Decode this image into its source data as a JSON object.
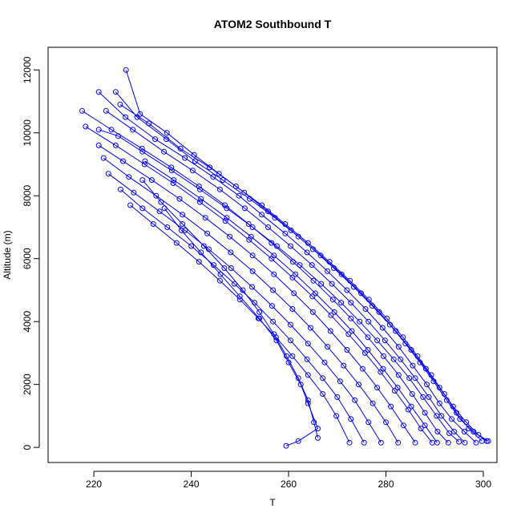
{
  "chart_data": {
    "type": "line",
    "title": "ATOM2 Southbound T",
    "xlabel": "T",
    "ylabel": "Altitude (m)",
    "xlim": [
      210.6,
      302.8
    ],
    "ylim": [
      -480,
      12720
    ],
    "xticks": [
      220,
      240,
      260,
      280,
      300
    ],
    "yticks": [
      0,
      2000,
      4000,
      6000,
      8000,
      10000,
      12000
    ],
    "grid": false,
    "color": "#0000ff",
    "marker": "open-circle",
    "series": [
      {
        "x": [
          299.7,
          297.0,
          294.5,
          292.0,
          289.3,
          286.5,
          283.5,
          280.2,
          276.5,
          272.6,
          268.4,
          264.0,
          259.3,
          254.5,
          249.2,
          243.8,
          237.8,
          231.3,
          225.4
        ],
        "y": [
          200,
          600,
          1100,
          1700,
          2300,
          2900,
          3500,
          4100,
          4700,
          5300,
          5900,
          6500,
          7100,
          7700,
          8300,
          8900,
          9500,
          10300,
          10900
        ]
      },
      {
        "x": [
          300.7,
          298.0,
          295.2,
          292.5,
          289.8,
          287.0,
          284.0,
          280.8,
          277.2,
          273.4,
          269.3,
          265.0,
          260.5,
          255.8,
          250.9,
          245.7,
          240.6,
          235.0,
          229.5,
          226.6
        ],
        "y": [
          200,
          500,
          900,
          1500,
          2100,
          2700,
          3300,
          3900,
          4500,
          5100,
          5700,
          6300,
          6900,
          7500,
          8100,
          8700,
          9300,
          10000,
          10600,
          12000
        ]
      },
      {
        "x": [
          298.5,
          296.1,
          293.5,
          291.0,
          288.4,
          285.5,
          282.6,
          279.3,
          275.8,
          272.0,
          268.0,
          263.8,
          259.3,
          254.5,
          249.8,
          244.5,
          238.7,
          232.6,
          226.5,
          221.0
        ],
        "y": [
          150,
          500,
          900,
          1400,
          2000,
          2600,
          3200,
          3800,
          4400,
          5000,
          5600,
          6200,
          6800,
          7400,
          8000,
          8600,
          9200,
          9800,
          10500,
          11300
        ]
      },
      {
        "x": [
          296.2,
          294.0,
          291.4,
          288.8,
          286.0,
          283.0,
          279.8,
          276.4,
          272.8,
          268.9,
          264.8,
          260.4,
          255.8,
          251.0,
          245.9,
          240.3,
          234.4,
          228.0,
          222.5
        ],
        "y": [
          150,
          500,
          1000,
          1600,
          2200,
          2800,
          3400,
          4000,
          4600,
          5200,
          5800,
          6400,
          7000,
          7600,
          8200,
          8800,
          9400,
          10100,
          10700
        ]
      },
      {
        "x": [
          292.8,
          290.6,
          288.0,
          285.4,
          282.6,
          279.5,
          276.3,
          272.8,
          269.1,
          265.1,
          260.9,
          256.5,
          251.8,
          246.9,
          241.6,
          235.9,
          229.9,
          223.6,
          217.6
        ],
        "y": [
          150,
          500,
          1100,
          1700,
          2300,
          2900,
          3500,
          4100,
          4700,
          5300,
          5900,
          6500,
          7100,
          7700,
          8300,
          8900,
          9500,
          10100,
          10700
        ]
      },
      {
        "x": [
          289.5,
          287.2,
          284.6,
          281.8,
          278.9,
          275.7,
          272.3,
          268.7,
          264.9,
          260.8,
          256.5,
          251.9,
          247.0,
          241.8,
          236.3,
          230.4,
          224.5,
          218.3
        ],
        "y": [
          150,
          600,
          1200,
          1800,
          2400,
          3000,
          3600,
          4200,
          4800,
          5400,
          6000,
          6600,
          7200,
          7800,
          8400,
          9000,
          9600,
          10200
        ]
      },
      {
        "x": [
          286.0,
          283.6,
          281.0,
          278.2,
          275.2,
          272.0,
          268.6,
          265.0,
          261.1,
          257.0,
          252.6,
          247.9,
          242.9,
          237.6,
          231.9,
          226.0,
          221.0
        ],
        "y": [
          150,
          700,
          1300,
          1900,
          2500,
          3100,
          3700,
          4300,
          4900,
          5500,
          6100,
          6700,
          7300,
          7900,
          8500,
          9100,
          9600
        ]
      },
      {
        "x": [
          282.5,
          280.0,
          277.3,
          274.4,
          271.3,
          268.0,
          264.5,
          260.8,
          256.8,
          252.6,
          248.1,
          243.3,
          238.2,
          232.8,
          227.2,
          222.0
        ],
        "y": [
          150,
          800,
          1400,
          2000,
          2600,
          3200,
          3800,
          4400,
          5000,
          5600,
          6200,
          6800,
          7400,
          8000,
          8600,
          9200
        ]
      },
      {
        "x": [
          279.0,
          276.4,
          273.6,
          270.6,
          267.4,
          264.0,
          260.4,
          256.6,
          252.5,
          248.2,
          243.6,
          238.7,
          233.5,
          228.2,
          223.0
        ],
        "y": [
          150,
          800,
          1500,
          2100,
          2700,
          3300,
          3900,
          4500,
          5100,
          5700,
          6300,
          6900,
          7500,
          8100,
          8700
        ]
      },
      {
        "x": [
          275.5,
          272.8,
          270.0,
          267.0,
          263.8,
          260.4,
          256.8,
          253.0,
          248.9,
          244.6,
          240.0,
          235.1,
          230.0,
          225.5
        ],
        "y": [
          150,
          900,
          1600,
          2200,
          2800,
          3400,
          4000,
          4600,
          5200,
          5800,
          6400,
          7000,
          7600,
          8200
        ]
      },
      {
        "x": [
          272.5,
          269.8,
          267.0,
          264.0,
          260.8,
          257.4,
          253.8,
          250.0,
          245.9,
          241.6,
          237.0,
          232.2,
          227.5
        ],
        "y": [
          150,
          1000,
          1700,
          2300,
          2900,
          3500,
          4100,
          4700,
          5300,
          5900,
          6500,
          7100,
          7700
        ]
      },
      {
        "x": [
          301.0,
          299.0,
          296.5,
          293.8,
          291.0,
          288.2,
          285.2,
          282.0,
          278.6,
          274.9,
          270.9,
          266.6,
          262.0,
          257.2,
          252.0,
          246.5,
          240.8,
          234.9,
          228.9,
          224.5
        ],
        "y": [
          200,
          400,
          800,
          1300,
          1900,
          2500,
          3100,
          3700,
          4300,
          4900,
          5500,
          6100,
          6700,
          7300,
          7900,
          8500,
          9100,
          9800,
          10500,
          11300
        ]
      },
      {
        "x": [
          295.0,
          293.0,
          290.4,
          287.6,
          284.8,
          281.6,
          278.2,
          274.6,
          270.8,
          266.7,
          262.3,
          257.6,
          252.6,
          247.3,
          241.8,
          236.0,
          230.0,
          225.0,
          221.0
        ],
        "y": [
          180,
          450,
          1000,
          1600,
          2200,
          2800,
          3400,
          4000,
          4600,
          5200,
          5800,
          6400,
          7000,
          7600,
          8200,
          8800,
          9400,
          9900,
          10100
        ]
      },
      {
        "x": [
          266.0,
          265.2,
          264.0,
          262.0,
          259.6,
          257.0,
          254.0,
          250.6,
          246.8,
          242.6,
          238.2,
          233.8,
          230.0
        ],
        "y": [
          300,
          800,
          1500,
          2200,
          2900,
          3600,
          4300,
          5000,
          5700,
          6400,
          7100,
          7800,
          8500
        ]
      },
      {
        "x": [
          259.5,
          262.0,
          266.0,
          264.0,
          262.5,
          260.0,
          257.5,
          254.0,
          250.0,
          246.0,
          242.0,
          238.0,
          234.5
        ],
        "y": [
          50,
          200,
          600,
          1400,
          2000,
          2700,
          3400,
          4100,
          4800,
          5500,
          6200,
          6900,
          7600
        ]
      },
      {
        "x": [
          290.5,
          288.0,
          285.2,
          282.4,
          279.4,
          276.3,
          273.0,
          269.4,
          265.5,
          261.4,
          257.0,
          252.3,
          247.3,
          242.0,
          236.4,
          230.5
        ],
        "y": [
          150,
          700,
          1300,
          1900,
          2500,
          3100,
          3700,
          4300,
          4900,
          5500,
          6100,
          6700,
          7300,
          7900,
          8500,
          9100
        ]
      }
    ]
  }
}
